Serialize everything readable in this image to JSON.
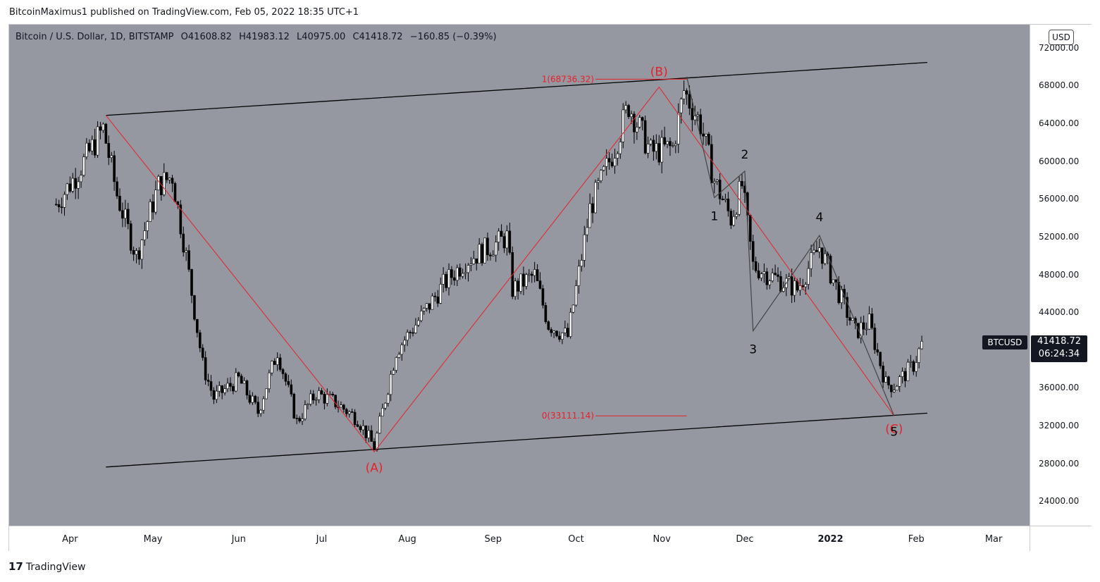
{
  "header": {
    "published": "BitcoinMaximus1 published on TradingView.com, Feb 05, 2022 18:35 UTC+1"
  },
  "legend": {
    "symbol": "Bitcoin / U.S. Dollar, 1D, BITSTAMP",
    "o_label": "O",
    "o_value": "41608.82",
    "h_label": "H",
    "h_value": "41983.12",
    "l_label": "L",
    "l_value": "40975.00",
    "c_label": "C",
    "c_value": "41418.72",
    "change": "−160.85 (−0.39%)"
  },
  "currency": "USD",
  "last_price": {
    "symbol": "BTCUSD",
    "price": "41418.72",
    "countdown": "06:24:34"
  },
  "footer": {
    "brand": "TradingView",
    "logo_glyph": "17"
  },
  "annotations": {
    "fib_top": "1(68736.32)",
    "fib_bottom": "0(33111.14)",
    "wave_A": "(A)",
    "wave_B": "(B)",
    "wave_C": "(C)",
    "sub_1": "1",
    "sub_2": "2",
    "sub_3": "3",
    "sub_4": "4",
    "sub_5": "5"
  },
  "colors": {
    "background": "#9598a1",
    "annotation_red": "#e8202a",
    "line_black": "#000000"
  },
  "chart_data": {
    "type": "candlestick",
    "symbol": "BTCUSD",
    "y_range": [
      21500,
      74500
    ],
    "y_ticks": [
      {
        "value": 72000,
        "label": "72000.00"
      },
      {
        "value": 68000,
        "label": "68000.00"
      },
      {
        "value": 64000,
        "label": "64000.00"
      },
      {
        "value": 60000,
        "label": "60000.00"
      },
      {
        "value": 56000,
        "label": "56000.00"
      },
      {
        "value": 52000,
        "label": "52000.00"
      },
      {
        "value": 48000,
        "label": "48000.00"
      },
      {
        "value": 44000,
        "label": "44000.00"
      },
      {
        "value": 36000,
        "label": "36000.00"
      },
      {
        "value": 32000,
        "label": "32000.00"
      },
      {
        "value": 28000,
        "label": "28000.00"
      },
      {
        "value": 24000,
        "label": "24000.00"
      }
    ],
    "x_ticks": [
      {
        "label": "Apr",
        "bold": false
      },
      {
        "label": "May",
        "bold": false
      },
      {
        "label": "Jun",
        "bold": false
      },
      {
        "label": "Jul",
        "bold": false
      },
      {
        "label": "Aug",
        "bold": false
      },
      {
        "label": "Sep",
        "bold": false
      },
      {
        "label": "Oct",
        "bold": false
      },
      {
        "label": "Nov",
        "bold": false
      },
      {
        "label": "Dec",
        "bold": false
      },
      {
        "label": "2022",
        "bold": true
      },
      {
        "label": "Feb",
        "bold": false
      },
      {
        "label": "Mar",
        "bold": false
      }
    ],
    "price_path": [
      [
        "2021-03-27",
        55500
      ],
      [
        "2021-04-03",
        58500
      ],
      [
        "2021-04-13",
        63500
      ],
      [
        "2021-04-18",
        56500
      ],
      [
        "2021-04-25",
        50000
      ],
      [
        "2021-05-03",
        57500
      ],
      [
        "2021-05-08",
        58500
      ],
      [
        "2021-05-13",
        50000
      ],
      [
        "2021-05-19",
        38500
      ],
      [
        "2021-05-23",
        35000
      ],
      [
        "2021-06-01",
        37000
      ],
      [
        "2021-06-08",
        33500
      ],
      [
        "2021-06-15",
        40000
      ],
      [
        "2021-06-22",
        32500
      ],
      [
        "2021-06-29",
        35500
      ],
      [
        "2021-07-06",
        34500
      ],
      [
        "2021-07-14",
        32800
      ],
      [
        "2021-07-20",
        29800
      ],
      [
        "2021-07-28",
        40000
      ],
      [
        "2021-08-07",
        44000
      ],
      [
        "2021-08-14",
        47000
      ],
      [
        "2021-08-22",
        49500
      ],
      [
        "2021-09-06",
        52000
      ],
      [
        "2021-09-08",
        46500
      ],
      [
        "2021-09-16",
        48000
      ],
      [
        "2021-09-21",
        42800
      ],
      [
        "2021-09-28",
        41500
      ],
      [
        "2021-10-06",
        55000
      ],
      [
        "2021-10-15",
        61500
      ],
      [
        "2021-10-20",
        66000
      ],
      [
        "2021-10-28",
        61000
      ],
      [
        "2021-11-05",
        61500
      ],
      [
        "2021-11-09",
        67500
      ],
      [
        "2021-11-15",
        64000
      ],
      [
        "2021-11-20",
        58000
      ],
      [
        "2021-11-26",
        54000
      ],
      [
        "2021-11-30",
        57500
      ],
      [
        "2021-12-04",
        49000
      ],
      [
        "2021-12-10",
        48000
      ],
      [
        "2021-12-20",
        46500
      ],
      [
        "2021-12-28",
        51000
      ],
      [
        "2022-01-02",
        47500
      ],
      [
        "2022-01-10",
        42000
      ],
      [
        "2022-01-15",
        43000
      ],
      [
        "2022-01-21",
        36500
      ],
      [
        "2022-01-24",
        36300
      ],
      [
        "2022-01-31",
        38500
      ],
      [
        "2022-02-04",
        41400
      ]
    ],
    "channel": {
      "upper": [
        [
          "2021-04-14",
          64900
        ],
        [
          "2022-02-05",
          70500
        ]
      ],
      "lower": [
        [
          "2021-04-14",
          27700
        ],
        [
          "2022-02-05",
          33400
        ]
      ]
    },
    "abc_wave": [
      [
        "2021-04-14",
        64900
      ],
      [
        "2021-07-20",
        29300
      ],
      [
        "2021-10-31",
        67900
      ],
      [
        "2022-01-24",
        33100
      ]
    ],
    "impulse_wave": [
      [
        "2021-11-10",
        69000
      ],
      [
        "2021-11-20",
        56200
      ],
      [
        "2021-12-01",
        59000
      ],
      [
        "2021-12-04",
        42100
      ],
      [
        "2021-12-28",
        52200
      ],
      [
        "2022-01-24",
        33100
      ]
    ],
    "fib_levels": [
      {
        "value": 68736.32,
        "from": "2021-10-08",
        "to": "2021-11-10"
      },
      {
        "value": 33111.14,
        "from": "2021-10-08",
        "to": "2021-11-10"
      }
    ]
  }
}
